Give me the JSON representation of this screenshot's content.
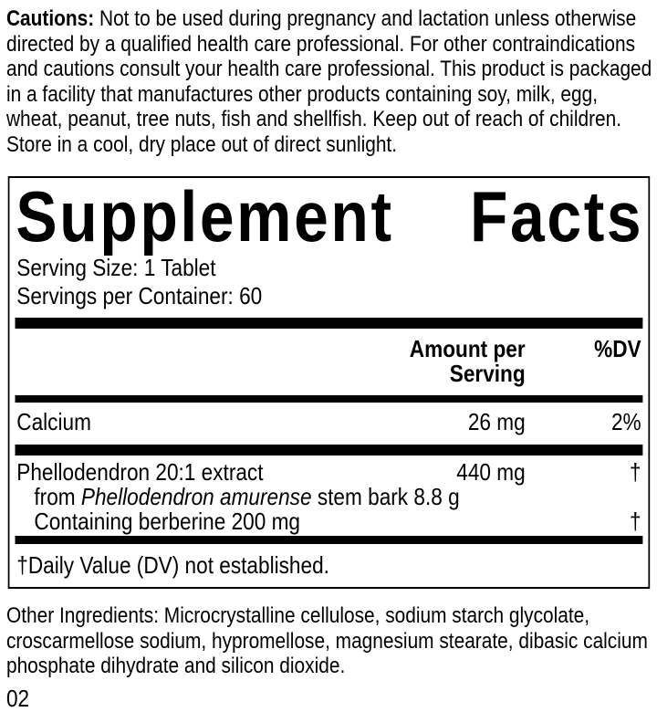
{
  "colors": {
    "text": "#000000",
    "background": "#ffffff",
    "divider_bar": "#000000"
  },
  "cautions": {
    "label": "Cautions:",
    "text": " Not to be used during pregnancy and lactation unless otherwise directed by a qualified health care professional. For other contraindications and cautions consult your health care professional. This product is packaged in a facility that manufactures other products containing soy, milk, egg, wheat, peanut, tree nuts, fish and shellfish. Keep out of reach of children. Store in a cool, dry place out of direct sunlight."
  },
  "panel": {
    "title_word1": "Supplement",
    "title_word2": "Facts",
    "serving_size": "Serving Size: 1 Tablet",
    "servings_per_container": "Servings per Container: 60",
    "header": {
      "amount": "Amount per Serving",
      "dv": "%DV"
    },
    "rows": [
      {
        "name": "Calcium",
        "amount": "26 mg",
        "dv": "2%"
      },
      {
        "name": "Phellodendron 20:1 extract",
        "amount": "440 mg",
        "dv": "†"
      },
      {
        "prefix": "from ",
        "italic": "Phellodendron amurense",
        "suffix": " stem bark 8.8 g",
        "amount": "",
        "dv": ""
      },
      {
        "name": "Containing berberine 200 mg",
        "amount": "",
        "dv": "†"
      }
    ],
    "footnote": "†Daily Value (DV) not established."
  },
  "other_ingredients": "Other Ingredients: Microcrystalline cellulose, sodium starch glycolate, croscarmellose sodium, hypromellose, magnesium stearate, dibasic calcium phosphate dihydrate and silicon dioxide.",
  "footer_code": "02"
}
